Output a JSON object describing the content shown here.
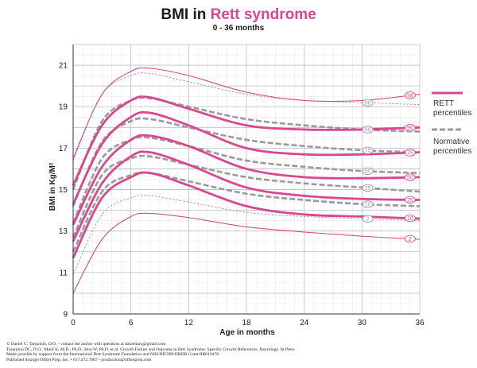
{
  "colors": {
    "rett": "#d9488f",
    "normative": "#9a9a9a",
    "grid_major": "#bdbdbd",
    "grid_minor": "#e6e6e6",
    "axis": "#333333"
  },
  "chart_data": {
    "type": "line",
    "title_prefix": "BMI in ",
    "title_highlight": "Rett syndrome",
    "subtitle": "0 - 36 months",
    "xlabel": "Age in months",
    "ylabel": "BMI in Kg/M²",
    "xlim": [
      0,
      36
    ],
    "ylim": [
      9,
      22
    ],
    "x_ticks": [
      0,
      6,
      12,
      18,
      24,
      30,
      36
    ],
    "y_ticks": [
      9,
      11,
      13,
      15,
      17,
      19,
      21
    ],
    "grid": true,
    "legend": [
      {
        "label_lines": [
          "RETT",
          "percentiles"
        ],
        "style": "solid",
        "color": "#d9488f"
      },
      {
        "label_lines": [
          "Normative",
          "percentiles"
        ],
        "style": "dashed",
        "color": "#9a9a9a"
      }
    ],
    "series": [
      {
        "group": "rett",
        "label": "2",
        "weight": "thin",
        "x": [
          0,
          3,
          6,
          8,
          12,
          18,
          24,
          30,
          36
        ],
        "y": [
          10.0,
          12.6,
          13.7,
          13.85,
          13.65,
          13.2,
          12.95,
          12.75,
          12.6
        ]
      },
      {
        "group": "rett",
        "label": "10",
        "weight": "thick",
        "x": [
          0,
          3,
          6,
          8,
          12,
          18,
          24,
          30,
          36
        ],
        "y": [
          11.7,
          14.6,
          15.6,
          15.8,
          15.2,
          14.2,
          13.8,
          13.7,
          13.6
        ]
      },
      {
        "group": "rett",
        "label": "25",
        "weight": "thick",
        "x": [
          0,
          3,
          6,
          8,
          12,
          18,
          24,
          30,
          36
        ],
        "y": [
          12.5,
          15.3,
          16.6,
          16.8,
          16.2,
          15.1,
          14.7,
          14.55,
          14.5
        ]
      },
      {
        "group": "rett",
        "label": "50",
        "weight": "thick",
        "x": [
          0,
          3,
          6,
          8,
          12,
          18,
          24,
          30,
          36
        ],
        "y": [
          13.3,
          16.1,
          17.4,
          17.6,
          17.1,
          16.0,
          15.6,
          15.55,
          15.6
        ]
      },
      {
        "group": "rett",
        "label": "75",
        "weight": "thick",
        "x": [
          0,
          3,
          6,
          8,
          12,
          18,
          24,
          30,
          36
        ],
        "y": [
          14.3,
          17.2,
          18.5,
          18.7,
          18.1,
          17.0,
          16.7,
          16.7,
          16.8
        ]
      },
      {
        "group": "rett",
        "label": "90",
        "weight": "thick",
        "x": [
          0,
          3,
          6,
          8,
          12,
          18,
          24,
          30,
          36
        ],
        "y": [
          15.2,
          18.1,
          19.3,
          19.45,
          18.9,
          18.1,
          17.9,
          17.9,
          18.0
        ]
      },
      {
        "group": "rett",
        "label": "98",
        "weight": "thin",
        "x": [
          0,
          3,
          6,
          8,
          12,
          18,
          24,
          30,
          36
        ],
        "y": [
          16.5,
          19.6,
          20.7,
          20.85,
          20.5,
          19.7,
          19.3,
          19.3,
          19.6
        ]
      },
      {
        "group": "normative",
        "label": "2",
        "weight": "thin",
        "x": [
          0,
          3,
          6,
          8,
          12,
          18,
          24,
          30,
          36
        ],
        "y": [
          10.9,
          13.8,
          14.6,
          14.7,
          14.4,
          13.9,
          13.7,
          13.6,
          13.5
        ]
      },
      {
        "group": "normative",
        "label": "10",
        "weight": "thick",
        "x": [
          0,
          3,
          6,
          8,
          12,
          18,
          24,
          30,
          36
        ],
        "y": [
          12.0,
          14.9,
          15.7,
          15.8,
          15.4,
          14.8,
          14.5,
          14.3,
          14.2
        ]
      },
      {
        "group": "normative",
        "label": "25",
        "weight": "thick",
        "x": [
          0,
          3,
          6,
          8,
          12,
          18,
          24,
          30,
          36
        ],
        "y": [
          12.7,
          15.7,
          16.5,
          16.6,
          16.2,
          15.6,
          15.3,
          15.1,
          14.9
        ]
      },
      {
        "group": "normative",
        "label": "50",
        "weight": "thick",
        "x": [
          0,
          3,
          6,
          8,
          12,
          18,
          24,
          30,
          36
        ],
        "y": [
          13.4,
          16.5,
          17.4,
          17.5,
          17.1,
          16.4,
          16.1,
          15.9,
          15.8
        ]
      },
      {
        "group": "normative",
        "label": "75",
        "weight": "thick",
        "x": [
          0,
          3,
          6,
          8,
          12,
          18,
          24,
          30,
          36
        ],
        "y": [
          14.2,
          17.3,
          18.3,
          18.4,
          18.0,
          17.4,
          17.1,
          16.9,
          16.8
        ]
      },
      {
        "group": "normative",
        "label": "90",
        "weight": "thick",
        "x": [
          0,
          3,
          6,
          8,
          12,
          18,
          24,
          30,
          36
        ],
        "y": [
          15.0,
          18.3,
          19.3,
          19.4,
          19.0,
          18.4,
          18.1,
          17.9,
          17.8
        ]
      },
      {
        "group": "normative",
        "label": "98",
        "weight": "thin",
        "x": [
          0,
          3,
          6,
          8,
          12,
          18,
          24,
          30,
          36
        ],
        "y": [
          16.4,
          19.6,
          20.5,
          20.6,
          20.2,
          19.6,
          19.3,
          19.2,
          19.1
        ]
      }
    ],
    "footer_lines": [
      "© Daniel C. Tarquinio, D.O. - contact the author with questions at danieltarq@gmail.com",
      "Tarquinio DC, D.O., Motil K, M.D., Ph.D., Hou W, Ph.D, et al. Growth Failure and Outcome in Rett Syndrome: Specific Growth References. Neurology. In Press",
      "Made possible by support from the International Rett Syndrome Foundation and NIH/NICHD/ORDR Grant RR019478",
      "Published through Offset Prep, Inc. • 617.472.7887 • production@offsetprep.com"
    ]
  }
}
